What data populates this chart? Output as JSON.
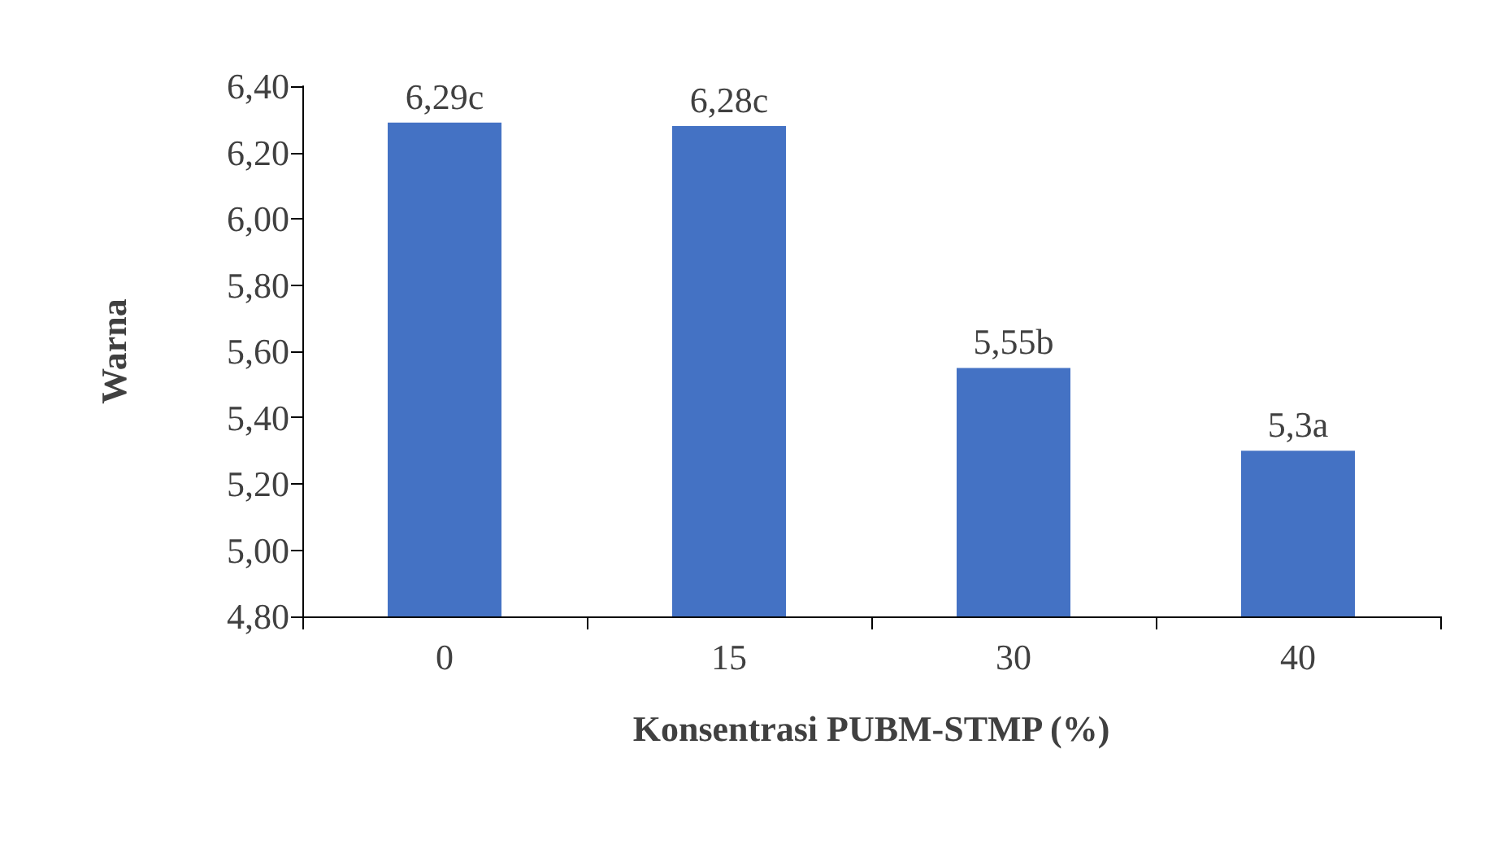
{
  "chart_data": {
    "type": "bar",
    "xlabel": "Konsentrasi PUBM-STMP (%)",
    "ylabel": "Warna",
    "categories": [
      "0",
      "15",
      "30",
      "40"
    ],
    "series": [
      {
        "color": "#4472c4",
        "values": [
          6.29,
          6.28,
          5.55,
          5.3
        ],
        "value_labels": [
          "6,29c",
          "6,28c",
          "5,55b",
          "5,3a"
        ]
      }
    ],
    "ylim": [
      4.8,
      6.4
    ],
    "yticks": [
      {
        "value": 4.8,
        "label": "4,80"
      },
      {
        "value": 5.0,
        "label": "5,00"
      },
      {
        "value": 5.2,
        "label": "5,20"
      },
      {
        "value": 5.4,
        "label": "5,40"
      },
      {
        "value": 5.6,
        "label": "5,60"
      },
      {
        "value": 5.8,
        "label": "5,80"
      },
      {
        "value": 6.0,
        "label": "6,00"
      },
      {
        "value": 6.2,
        "label": "6,20"
      },
      {
        "value": 6.4,
        "label": "6,40"
      }
    ],
    "grid": false
  }
}
